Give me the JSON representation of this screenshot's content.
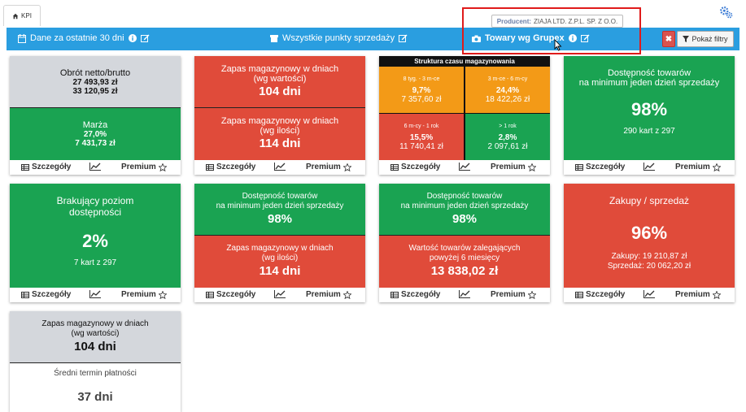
{
  "tabs": {
    "kpi": "KPI"
  },
  "tooltip": {
    "label": "Producent:",
    "value": "ZIAJA LTD. Z.P.L. SP. Z O.O."
  },
  "filterbar": {
    "date": "Dane za ostatnie 30 dni",
    "points": "Wszystkie punkty sprzedaży",
    "goods": "Towary wg Grupex",
    "show_filters": "Pokaż filtry",
    "clear": "✖"
  },
  "footer": {
    "details": "Szczegóły",
    "premium": "Premium"
  },
  "cards": {
    "turnover": {
      "title": "Obrót netto/brutto",
      "net": "27 493,93 zł",
      "gross": "33 120,95 zł",
      "margin_title": "Marża",
      "margin_pct": "27,0%",
      "margin_value": "7 431,73 zł"
    },
    "stock_days": {
      "title1": "Zapas magazynowy w dniach",
      "sub1": "(wg wartości)",
      "value1": "104 dni",
      "title2": "Zapas magazynowy w dniach",
      "sub2": "(wg ilości)",
      "value2": "114 dni"
    },
    "structure": {
      "title": "Struktura czasu magazynowania",
      "cells": [
        {
          "label": "8 tyg. - 3 m-ce",
          "pct": "9,7%",
          "value": "7 357,60 zł"
        },
        {
          "label": "3 m-ce - 6 m-cy",
          "pct": "24,4%",
          "value": "18 422,26 zł"
        },
        {
          "label": "6 m-cy - 1 rok",
          "pct": "15,5%",
          "value": "11 740,41 zł"
        },
        {
          "label": "> 1 rok",
          "pct": "2,8%",
          "value": "2 097,61 zł"
        }
      ]
    },
    "availability": {
      "title": "Dostępność towarów",
      "sub": "na minimum jeden dzień sprzedaży",
      "value": "98%",
      "count": "290 kart z 297"
    },
    "missing": {
      "title": "Brakujący poziom",
      "sub": "dostępności",
      "value": "2%",
      "count": "7 kart z 297"
    },
    "avail_stock": {
      "title": "Dostępność towarów",
      "sub": "na minimum jeden dzień sprzedaży",
      "value": "98%",
      "title2": "Zapas magazynowy w dniach",
      "sub2": "(wg ilości)",
      "value2": "114 dni"
    },
    "avail_old": {
      "title": "Dostępność towarów",
      "sub": "na minimum jeden dzień sprzedaży",
      "value": "98%",
      "title2": "Wartość towarów zalegających",
      "sub2": "powyżej 6 miesięcy",
      "value2": "13 838,02 zł"
    },
    "purchases": {
      "title": "Zakupy / sprzedaż",
      "value": "96%",
      "purchases": "Zakupy: 19 210,87 zł",
      "sales": "Sprzedaż: 20 062,20 zł"
    },
    "stock_payment": {
      "title": "Zapas magazynowy w dniach",
      "sub": "(wg wartości)",
      "value": "104 dni",
      "title2": "Średni termin płatności",
      "value2": "37 dni"
    }
  },
  "colors": {
    "red": "#e04b3a",
    "green": "#1aa352",
    "orange": "#f39a17",
    "gray": "#d4d7dc",
    "bar": "#2a9ee0"
  },
  "icons": [
    "home-icon",
    "gears-icon",
    "calendar-icon",
    "info-icon",
    "edit-icon",
    "camera-icon",
    "filter-icon",
    "table-icon",
    "line-chart-icon",
    "star-icon",
    "cursor-icon"
  ]
}
